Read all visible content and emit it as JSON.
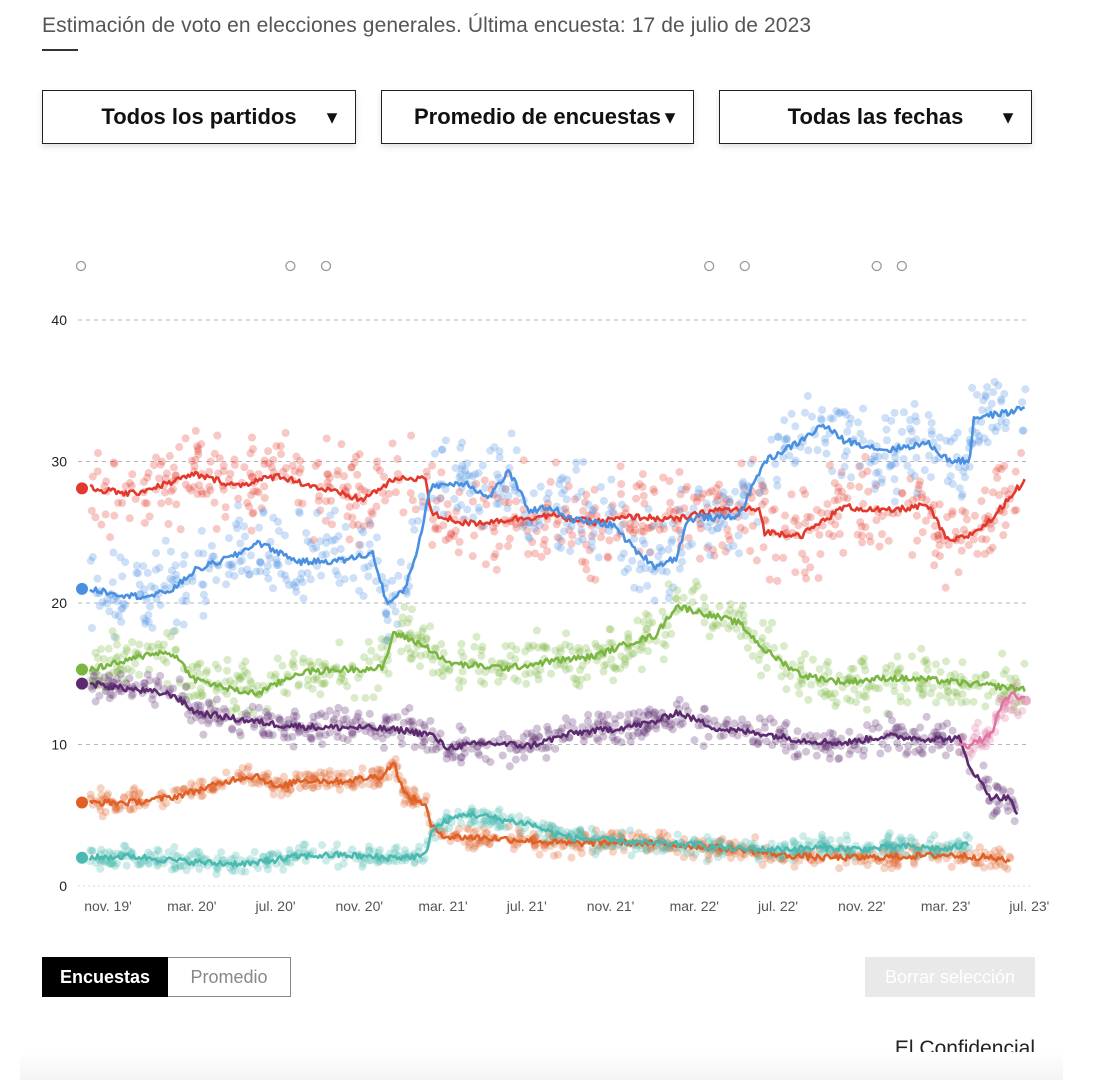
{
  "header": {
    "subtitle": "Estimación de voto en elecciones generales. Última encuesta: 17 de julio de 2023"
  },
  "filters": {
    "parties": "Todos los partidos",
    "method": "Promedio de encuestas",
    "dates": "Todas las fechas",
    "arrow": "▼"
  },
  "view_toggle": {
    "polls": "Encuestas",
    "average": "Promedio"
  },
  "clear_button": "Borrar selección",
  "source": "El Confidencial",
  "chart_data": {
    "type": "line",
    "x_ticks": [
      "nov. 19'",
      "mar. 20'",
      "jul. 20'",
      "nov. 20'",
      "mar. 21'",
      "jul. 21'",
      "nov. 21'",
      "mar. 22'",
      "jul. 22'",
      "nov. 22'",
      "mar. 23'",
      "jul. 23'"
    ],
    "ylim": [
      0,
      40
    ],
    "y_ticks": [
      "0",
      "10",
      "20",
      "30",
      "40"
    ],
    "grid": true,
    "event_markers_months": [
      0,
      10,
      11.7,
      30,
      31.7,
      38,
      39.2
    ],
    "xrange_months": [
      0,
      44.7
    ],
    "series": [
      {
        "color": "#e2392c",
        "points": [
          [
            0,
            28.1
          ],
          [
            2,
            27.7
          ],
          [
            4,
            28.6
          ],
          [
            5,
            29.1
          ],
          [
            7,
            28.3
          ],
          [
            9,
            29.0
          ],
          [
            11,
            28.1
          ],
          [
            13,
            27.3
          ],
          [
            14.5,
            28.7
          ],
          [
            16,
            28.9
          ],
          [
            16.3,
            26.3
          ],
          [
            18,
            25.6
          ],
          [
            20,
            25.9
          ],
          [
            22,
            26.2
          ],
          [
            24,
            25.7
          ],
          [
            26,
            26.1
          ],
          [
            28,
            25.9
          ],
          [
            30,
            26.6
          ],
          [
            32,
            26.6
          ],
          [
            32.2,
            25.0
          ],
          [
            34,
            24.8
          ],
          [
            36,
            26.8
          ],
          [
            38,
            26.5
          ],
          [
            40,
            26.9
          ],
          [
            41,
            24.3
          ],
          [
            42,
            24.8
          ],
          [
            43,
            25.8
          ],
          [
            44.2,
            28.0
          ],
          [
            44.7,
            28.6
          ]
        ]
      },
      {
        "color": "#4a90e2",
        "points": [
          [
            0,
            21.0
          ],
          [
            2,
            20.5
          ],
          [
            3,
            20.5
          ],
          [
            4,
            21.0
          ],
          [
            5,
            22.3
          ],
          [
            7,
            23.4
          ],
          [
            8,
            24.3
          ],
          [
            10,
            22.9
          ],
          [
            12,
            23.0
          ],
          [
            13.5,
            23.5
          ],
          [
            14.2,
            19.9
          ],
          [
            15,
            20.9
          ],
          [
            15.6,
            23.6
          ],
          [
            16.3,
            28.3
          ],
          [
            18,
            28.5
          ],
          [
            19,
            27.4
          ],
          [
            20,
            29.3
          ],
          [
            21,
            26.5
          ],
          [
            22,
            26.8
          ],
          [
            23,
            25.9
          ],
          [
            25,
            25.5
          ],
          [
            26,
            23.8
          ],
          [
            27,
            22.6
          ],
          [
            28,
            23.2
          ],
          [
            28.5,
            25.7
          ],
          [
            29,
            26.1
          ],
          [
            30,
            26.0
          ],
          [
            31,
            26.2
          ],
          [
            32.2,
            30.0
          ],
          [
            34,
            31.5
          ],
          [
            35,
            32.6
          ],
          [
            36,
            31.5
          ],
          [
            38,
            30.8
          ],
          [
            40,
            31.3
          ],
          [
            41,
            30.1
          ],
          [
            42,
            30.0
          ],
          [
            42.2,
            33.1
          ],
          [
            44,
            33.5
          ],
          [
            44.7,
            33.9
          ]
        ]
      },
      {
        "color": "#7ab641",
        "points": [
          [
            0,
            15.3
          ],
          [
            2,
            16.0
          ],
          [
            3,
            16.5
          ],
          [
            4,
            16.4
          ],
          [
            5,
            14.6
          ],
          [
            7,
            13.8
          ],
          [
            8,
            13.6
          ],
          [
            10,
            15.1
          ],
          [
            12,
            15.3
          ],
          [
            14,
            15.4
          ],
          [
            14.5,
            17.9
          ],
          [
            15.5,
            17.3
          ],
          [
            16.3,
            16.7
          ],
          [
            17,
            15.8
          ],
          [
            18,
            15.6
          ],
          [
            20,
            15.4
          ],
          [
            22,
            15.9
          ],
          [
            24,
            16.2
          ],
          [
            26,
            17.3
          ],
          [
            27,
            17.7
          ],
          [
            28,
            19.8
          ],
          [
            30,
            19.0
          ],
          [
            31,
            18.6
          ],
          [
            32.2,
            16.7
          ],
          [
            34,
            14.9
          ],
          [
            36,
            14.4
          ],
          [
            38,
            14.7
          ],
          [
            40,
            14.6
          ],
          [
            42,
            14.3
          ],
          [
            44.7,
            13.9
          ]
        ]
      },
      {
        "color": "#5c2a6e",
        "points": [
          [
            0,
            14.3
          ],
          [
            2,
            13.9
          ],
          [
            4,
            13.5
          ],
          [
            5,
            12.3
          ],
          [
            7,
            11.8
          ],
          [
            9,
            11.4
          ],
          [
            11,
            11.2
          ],
          [
            13,
            11.2
          ],
          [
            15,
            11.0
          ],
          [
            16.3,
            10.7
          ],
          [
            17,
            9.8
          ],
          [
            19,
            10.1
          ],
          [
            21,
            9.9
          ],
          [
            23,
            10.8
          ],
          [
            25,
            11.1
          ],
          [
            27,
            11.6
          ],
          [
            28,
            12.3
          ],
          [
            30,
            11.1
          ],
          [
            32,
            10.8
          ],
          [
            34,
            10.3
          ],
          [
            36,
            10.1
          ],
          [
            38,
            10.6
          ],
          [
            40,
            10.4
          ],
          [
            41.5,
            10.4
          ],
          [
            42,
            8.5
          ],
          [
            43,
            6.3
          ],
          [
            44,
            6.2
          ],
          [
            44.3,
            4.8
          ]
        ]
      },
      {
        "color": "#e06026",
        "points": [
          [
            0,
            5.9
          ],
          [
            2,
            5.9
          ],
          [
            4,
            6.3
          ],
          [
            5,
            6.7
          ],
          [
            7,
            7.6
          ],
          [
            8,
            7.8
          ],
          [
            9,
            6.9
          ],
          [
            10,
            7.5
          ],
          [
            12,
            7.4
          ],
          [
            14,
            7.8
          ],
          [
            14.5,
            8.8
          ],
          [
            15,
            6.5
          ],
          [
            16,
            5.8
          ],
          [
            16.3,
            4.2
          ],
          [
            17,
            3.5
          ],
          [
            19,
            3.4
          ],
          [
            21,
            3.2
          ],
          [
            23,
            3.0
          ],
          [
            25,
            3.1
          ],
          [
            27,
            3.0
          ],
          [
            29,
            2.8
          ],
          [
            31,
            2.6
          ],
          [
            33,
            2.2
          ],
          [
            35,
            2.0
          ],
          [
            37,
            2.0
          ],
          [
            39,
            2.1
          ],
          [
            41,
            2.2
          ],
          [
            43,
            2.0
          ],
          [
            44,
            1.7
          ]
        ]
      },
      {
        "color": "#4ab9b0",
        "points": [
          [
            0,
            2.0
          ],
          [
            2,
            2.1
          ],
          [
            4,
            1.8
          ],
          [
            6,
            1.6
          ],
          [
            8,
            1.6
          ],
          [
            9,
            1.9
          ],
          [
            10,
            2.1
          ],
          [
            12,
            2.2
          ],
          [
            14,
            2.0
          ],
          [
            16,
            2.1
          ],
          [
            16.3,
            3.9
          ],
          [
            17,
            4.6
          ],
          [
            18,
            5.1
          ],
          [
            19,
            4.9
          ],
          [
            20,
            4.6
          ],
          [
            21,
            4.4
          ],
          [
            22,
            3.8
          ],
          [
            23,
            3.4
          ],
          [
            25,
            3.2
          ],
          [
            27,
            3.0
          ],
          [
            29,
            2.9
          ],
          [
            31,
            2.6
          ],
          [
            33,
            2.6
          ],
          [
            35,
            2.7
          ],
          [
            37,
            2.6
          ],
          [
            39,
            2.8
          ],
          [
            41,
            2.6
          ],
          [
            42,
            3.0
          ]
        ]
      },
      {
        "color": "#e075a3",
        "points": [
          [
            41.5,
            10.2
          ],
          [
            42,
            9.9
          ],
          [
            42.5,
            10.3
          ],
          [
            43,
            10.6
          ],
          [
            43.5,
            12.6
          ],
          [
            44,
            13.6
          ],
          [
            44.7,
            13.1
          ]
        ]
      }
    ]
  }
}
